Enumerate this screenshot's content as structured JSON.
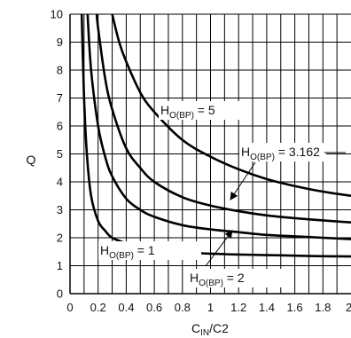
{
  "chart_data": {
    "type": "line",
    "title": "",
    "xlabel": {
      "main": "C",
      "sub": "IN",
      "rest": "/C2"
    },
    "ylabel": "Q",
    "xlim": [
      0,
      2
    ],
    "ylim": [
      0,
      10
    ],
    "x_ticks": [
      "0",
      "0.2",
      "0.4",
      "0.6",
      "0.8",
      "1",
      "1.2",
      "1.4",
      "1.6",
      "1.8",
      "2"
    ],
    "y_ticks": [
      "0",
      "1",
      "2",
      "3",
      "4",
      "5",
      "6",
      "7",
      "8",
      "9",
      "10"
    ],
    "grid": true,
    "legend": "none",
    "series": [
      {
        "label": {
          "main": "H",
          "sub": "O(BP)",
          "rest": " = 1"
        },
        "x": [
          0.083,
          0.1,
          0.12,
          0.15,
          0.2,
          0.25,
          0.3,
          0.4,
          0.5,
          0.6,
          0.8,
          1.0,
          1.2,
          1.4,
          1.6,
          1.8,
          2.0
        ],
        "y": [
          10,
          7.0,
          5.0,
          3.5,
          2.6,
          2.25,
          2.0,
          1.8,
          1.65,
          1.57,
          1.48,
          1.43,
          1.4,
          1.38,
          1.36,
          1.34,
          1.33
        ]
      },
      {
        "label": {
          "main": "H",
          "sub": "O(BP)",
          "rest": " = 2"
        },
        "x": [
          0.125,
          0.15,
          0.2,
          0.25,
          0.3,
          0.4,
          0.5,
          0.6,
          0.8,
          1.0,
          1.2,
          1.4,
          1.6,
          1.8,
          2.0
        ],
        "y": [
          10,
          8.0,
          6.0,
          4.9,
          4.2,
          3.4,
          3.0,
          2.75,
          2.45,
          2.3,
          2.2,
          2.1,
          2.05,
          2.0,
          1.95
        ]
      },
      {
        "label": {
          "main": "H",
          "sub": "O(BP)",
          "rest": " = 3.162"
        },
        "x": [
          0.19,
          0.2,
          0.25,
          0.3,
          0.4,
          0.5,
          0.6,
          0.8,
          1.0,
          1.2,
          1.4,
          1.6,
          1.8,
          2.0
        ],
        "y": [
          10,
          9.5,
          7.7,
          6.6,
          5.2,
          4.5,
          4.0,
          3.45,
          3.15,
          2.95,
          2.8,
          2.7,
          2.62,
          2.55
        ]
      },
      {
        "label": {
          "main": "H",
          "sub": "O(BP)",
          "rest": " = 5"
        },
        "x": [
          0.3,
          0.35,
          0.4,
          0.5,
          0.6,
          0.8,
          1.0,
          1.2,
          1.4,
          1.6,
          1.8,
          2.0
        ],
        "y": [
          10,
          9.0,
          8.3,
          7.2,
          6.5,
          5.5,
          4.9,
          4.45,
          4.1,
          3.85,
          3.65,
          3.5
        ]
      }
    ]
  }
}
